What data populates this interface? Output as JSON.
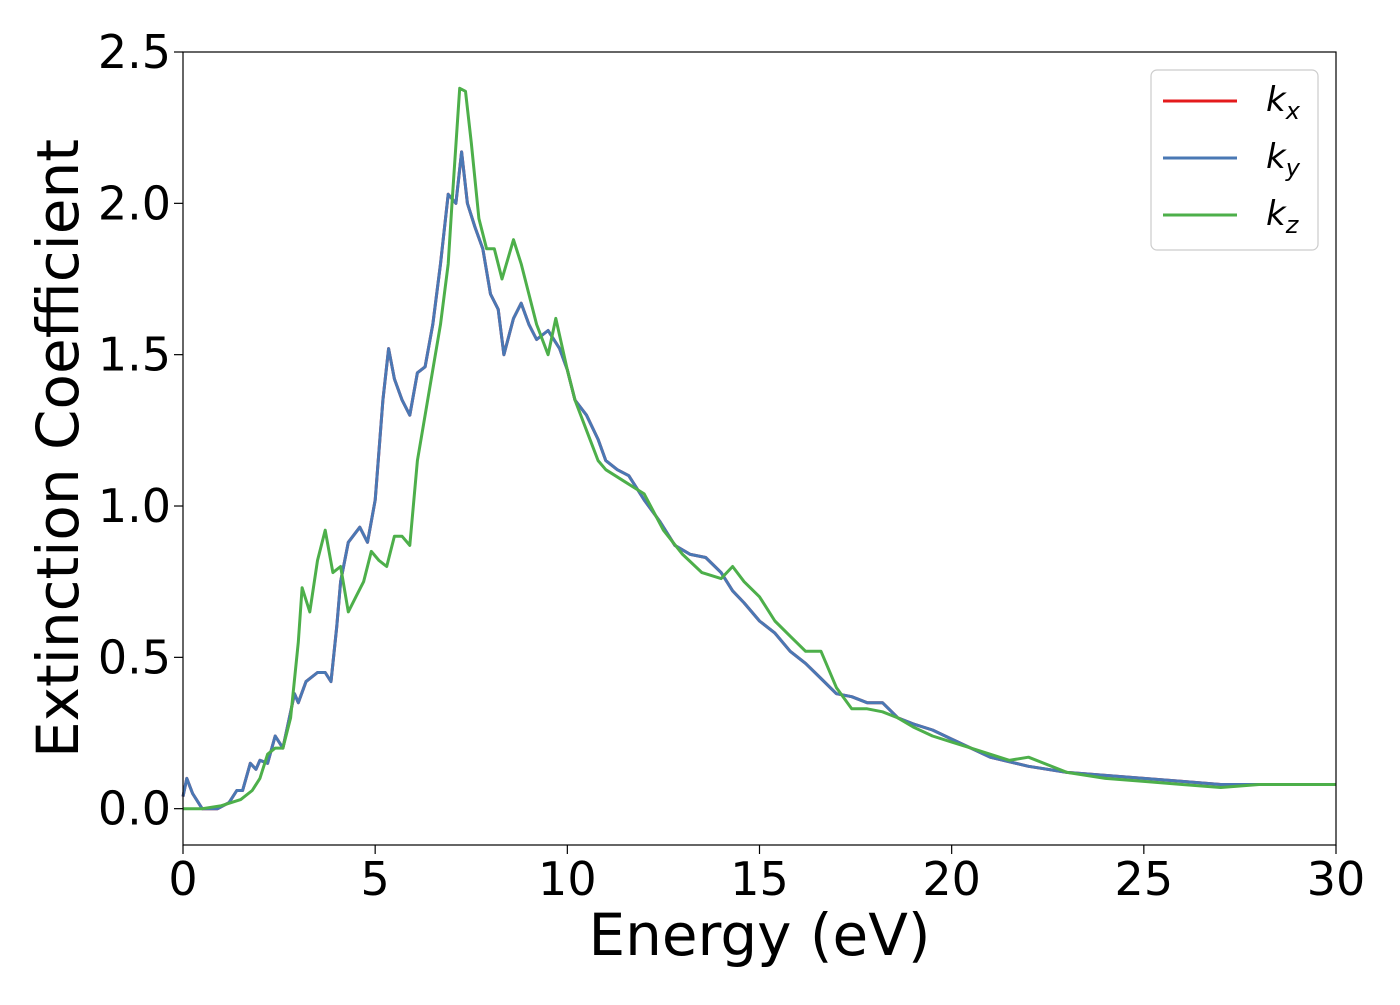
{
  "chart_data": {
    "type": "line",
    "xlabel": "Energy (eV)",
    "ylabel": "Extinction Coefficient",
    "xlim": [
      0,
      30
    ],
    "ylim": [
      -0.12,
      2.5
    ],
    "xticks": [
      "0",
      "5",
      "10",
      "15",
      "20",
      "25",
      "30"
    ],
    "yticks": [
      "0.0",
      "0.5",
      "1.0",
      "1.5",
      "2.0",
      "2.5"
    ],
    "grid": false,
    "legend_position": "top-right",
    "colors": {
      "k_x": "#e41a1c",
      "k_y": "#4a78b4",
      "k_z": "#4daf4a"
    },
    "series": [
      {
        "name": "k_x",
        "legend_base": "k",
        "legend_sub": "x",
        "points": [
          [
            0,
            0.04
          ],
          [
            0.1,
            0.1
          ],
          [
            0.25,
            0.05
          ],
          [
            0.5,
            0.0
          ],
          [
            0.9,
            0.0
          ],
          [
            1.2,
            0.02
          ],
          [
            1.4,
            0.06
          ],
          [
            1.55,
            0.06
          ],
          [
            1.75,
            0.15
          ],
          [
            1.9,
            0.13
          ],
          [
            2.0,
            0.16
          ],
          [
            2.2,
            0.15
          ],
          [
            2.4,
            0.24
          ],
          [
            2.6,
            0.2
          ],
          [
            2.9,
            0.38
          ],
          [
            3.0,
            0.35
          ],
          [
            3.2,
            0.42
          ],
          [
            3.5,
            0.45
          ],
          [
            3.7,
            0.45
          ],
          [
            3.85,
            0.42
          ],
          [
            4.0,
            0.6
          ],
          [
            4.1,
            0.75
          ],
          [
            4.3,
            0.88
          ],
          [
            4.6,
            0.93
          ],
          [
            4.8,
            0.88
          ],
          [
            5.0,
            1.02
          ],
          [
            5.2,
            1.35
          ],
          [
            5.35,
            1.52
          ],
          [
            5.5,
            1.42
          ],
          [
            5.7,
            1.35
          ],
          [
            5.9,
            1.3
          ],
          [
            6.1,
            1.44
          ],
          [
            6.3,
            1.46
          ],
          [
            6.5,
            1.6
          ],
          [
            6.7,
            1.8
          ],
          [
            6.9,
            2.03
          ],
          [
            7.1,
            2.0
          ],
          [
            7.25,
            2.17
          ],
          [
            7.4,
            2.0
          ],
          [
            7.6,
            1.92
          ],
          [
            7.8,
            1.85
          ],
          [
            8.0,
            1.7
          ],
          [
            8.2,
            1.65
          ],
          [
            8.35,
            1.5
          ],
          [
            8.6,
            1.62
          ],
          [
            8.8,
            1.67
          ],
          [
            9.0,
            1.6
          ],
          [
            9.2,
            1.55
          ],
          [
            9.5,
            1.58
          ],
          [
            9.8,
            1.52
          ],
          [
            10.0,
            1.45
          ],
          [
            10.2,
            1.35
          ],
          [
            10.5,
            1.3
          ],
          [
            10.8,
            1.22
          ],
          [
            11.0,
            1.15
          ],
          [
            11.3,
            1.12
          ],
          [
            11.6,
            1.1
          ],
          [
            12.0,
            1.02
          ],
          [
            12.4,
            0.95
          ],
          [
            12.8,
            0.87
          ],
          [
            13.2,
            0.84
          ],
          [
            13.6,
            0.83
          ],
          [
            14.0,
            0.78
          ],
          [
            14.3,
            0.72
          ],
          [
            14.6,
            0.68
          ],
          [
            15.0,
            0.62
          ],
          [
            15.4,
            0.58
          ],
          [
            15.8,
            0.52
          ],
          [
            16.2,
            0.48
          ],
          [
            16.6,
            0.43
          ],
          [
            17.0,
            0.38
          ],
          [
            17.4,
            0.37
          ],
          [
            17.8,
            0.35
          ],
          [
            18.2,
            0.35
          ],
          [
            18.6,
            0.3
          ],
          [
            19.0,
            0.28
          ],
          [
            19.5,
            0.26
          ],
          [
            20.0,
            0.23
          ],
          [
            20.5,
            0.2
          ],
          [
            21.0,
            0.17
          ],
          [
            22.0,
            0.14
          ],
          [
            23.0,
            0.12
          ],
          [
            24.0,
            0.11
          ],
          [
            25.0,
            0.1
          ],
          [
            26.0,
            0.09
          ],
          [
            27.0,
            0.08
          ],
          [
            28.0,
            0.08
          ],
          [
            29.0,
            0.08
          ],
          [
            30.0,
            0.08
          ]
        ]
      },
      {
        "name": "k_y",
        "legend_base": "k",
        "legend_sub": "y",
        "points": [
          [
            0,
            0.04
          ],
          [
            0.1,
            0.1
          ],
          [
            0.25,
            0.05
          ],
          [
            0.5,
            0.0
          ],
          [
            0.9,
            0.0
          ],
          [
            1.2,
            0.02
          ],
          [
            1.4,
            0.06
          ],
          [
            1.55,
            0.06
          ],
          [
            1.75,
            0.15
          ],
          [
            1.9,
            0.13
          ],
          [
            2.0,
            0.16
          ],
          [
            2.2,
            0.15
          ],
          [
            2.4,
            0.24
          ],
          [
            2.6,
            0.2
          ],
          [
            2.9,
            0.38
          ],
          [
            3.0,
            0.35
          ],
          [
            3.2,
            0.42
          ],
          [
            3.5,
            0.45
          ],
          [
            3.7,
            0.45
          ],
          [
            3.85,
            0.42
          ],
          [
            4.0,
            0.6
          ],
          [
            4.1,
            0.75
          ],
          [
            4.3,
            0.88
          ],
          [
            4.6,
            0.93
          ],
          [
            4.8,
            0.88
          ],
          [
            5.0,
            1.02
          ],
          [
            5.2,
            1.35
          ],
          [
            5.35,
            1.52
          ],
          [
            5.5,
            1.42
          ],
          [
            5.7,
            1.35
          ],
          [
            5.9,
            1.3
          ],
          [
            6.1,
            1.44
          ],
          [
            6.3,
            1.46
          ],
          [
            6.5,
            1.6
          ],
          [
            6.7,
            1.8
          ],
          [
            6.9,
            2.03
          ],
          [
            7.1,
            2.0
          ],
          [
            7.25,
            2.17
          ],
          [
            7.4,
            2.0
          ],
          [
            7.6,
            1.92
          ],
          [
            7.8,
            1.85
          ],
          [
            8.0,
            1.7
          ],
          [
            8.2,
            1.65
          ],
          [
            8.35,
            1.5
          ],
          [
            8.6,
            1.62
          ],
          [
            8.8,
            1.67
          ],
          [
            9.0,
            1.6
          ],
          [
            9.2,
            1.55
          ],
          [
            9.5,
            1.58
          ],
          [
            9.8,
            1.52
          ],
          [
            10.0,
            1.45
          ],
          [
            10.2,
            1.35
          ],
          [
            10.5,
            1.3
          ],
          [
            10.8,
            1.22
          ],
          [
            11.0,
            1.15
          ],
          [
            11.3,
            1.12
          ],
          [
            11.6,
            1.1
          ],
          [
            12.0,
            1.02
          ],
          [
            12.4,
            0.95
          ],
          [
            12.8,
            0.87
          ],
          [
            13.2,
            0.84
          ],
          [
            13.6,
            0.83
          ],
          [
            14.0,
            0.78
          ],
          [
            14.3,
            0.72
          ],
          [
            14.6,
            0.68
          ],
          [
            15.0,
            0.62
          ],
          [
            15.4,
            0.58
          ],
          [
            15.8,
            0.52
          ],
          [
            16.2,
            0.48
          ],
          [
            16.6,
            0.43
          ],
          [
            17.0,
            0.38
          ],
          [
            17.4,
            0.37
          ],
          [
            17.8,
            0.35
          ],
          [
            18.2,
            0.35
          ],
          [
            18.6,
            0.3
          ],
          [
            19.0,
            0.28
          ],
          [
            19.5,
            0.26
          ],
          [
            20.0,
            0.23
          ],
          [
            20.5,
            0.2
          ],
          [
            21.0,
            0.17
          ],
          [
            22.0,
            0.14
          ],
          [
            23.0,
            0.12
          ],
          [
            24.0,
            0.11
          ],
          [
            25.0,
            0.1
          ],
          [
            26.0,
            0.09
          ],
          [
            27.0,
            0.08
          ],
          [
            28.0,
            0.08
          ],
          [
            29.0,
            0.08
          ],
          [
            30.0,
            0.08
          ]
        ]
      },
      {
        "name": "k_z",
        "legend_base": "k",
        "legend_sub": "z",
        "points": [
          [
            0,
            0.0
          ],
          [
            0.5,
            0.0
          ],
          [
            1.0,
            0.01
          ],
          [
            1.5,
            0.03
          ],
          [
            1.8,
            0.06
          ],
          [
            2.0,
            0.1
          ],
          [
            2.2,
            0.18
          ],
          [
            2.4,
            0.2
          ],
          [
            2.6,
            0.2
          ],
          [
            2.8,
            0.3
          ],
          [
            3.0,
            0.55
          ],
          [
            3.1,
            0.73
          ],
          [
            3.3,
            0.65
          ],
          [
            3.5,
            0.82
          ],
          [
            3.7,
            0.92
          ],
          [
            3.9,
            0.78
          ],
          [
            4.1,
            0.8
          ],
          [
            4.3,
            0.65
          ],
          [
            4.5,
            0.7
          ],
          [
            4.7,
            0.75
          ],
          [
            4.9,
            0.85
          ],
          [
            5.1,
            0.82
          ],
          [
            5.3,
            0.8
          ],
          [
            5.5,
            0.9
          ],
          [
            5.7,
            0.9
          ],
          [
            5.9,
            0.87
          ],
          [
            6.1,
            1.15
          ],
          [
            6.3,
            1.3
          ],
          [
            6.5,
            1.45
          ],
          [
            6.7,
            1.6
          ],
          [
            6.9,
            1.8
          ],
          [
            7.0,
            2.0
          ],
          [
            7.2,
            2.38
          ],
          [
            7.35,
            2.37
          ],
          [
            7.5,
            2.2
          ],
          [
            7.7,
            1.95
          ],
          [
            7.9,
            1.85
          ],
          [
            8.1,
            1.85
          ],
          [
            8.3,
            1.75
          ],
          [
            8.6,
            1.88
          ],
          [
            8.8,
            1.8
          ],
          [
            9.0,
            1.7
          ],
          [
            9.2,
            1.6
          ],
          [
            9.5,
            1.5
          ],
          [
            9.7,
            1.62
          ],
          [
            10.0,
            1.45
          ],
          [
            10.2,
            1.35
          ],
          [
            10.5,
            1.25
          ],
          [
            10.8,
            1.15
          ],
          [
            11.0,
            1.12
          ],
          [
            11.5,
            1.08
          ],
          [
            12.0,
            1.04
          ],
          [
            12.5,
            0.92
          ],
          [
            13.0,
            0.84
          ],
          [
            13.5,
            0.78
          ],
          [
            14.0,
            0.76
          ],
          [
            14.3,
            0.8
          ],
          [
            14.6,
            0.75
          ],
          [
            15.0,
            0.7
          ],
          [
            15.4,
            0.62
          ],
          [
            15.8,
            0.57
          ],
          [
            16.2,
            0.52
          ],
          [
            16.6,
            0.52
          ],
          [
            17.0,
            0.4
          ],
          [
            17.4,
            0.33
          ],
          [
            17.8,
            0.33
          ],
          [
            18.2,
            0.32
          ],
          [
            18.6,
            0.3
          ],
          [
            19.0,
            0.27
          ],
          [
            19.5,
            0.24
          ],
          [
            20.0,
            0.22
          ],
          [
            20.5,
            0.2
          ],
          [
            21.0,
            0.18
          ],
          [
            21.5,
            0.16
          ],
          [
            22.0,
            0.17
          ],
          [
            23.0,
            0.12
          ],
          [
            24.0,
            0.1
          ],
          [
            25.0,
            0.09
          ],
          [
            26.0,
            0.08
          ],
          [
            27.0,
            0.07
          ],
          [
            28.0,
            0.08
          ],
          [
            29.0,
            0.08
          ],
          [
            30.0,
            0.08
          ]
        ]
      }
    ]
  }
}
